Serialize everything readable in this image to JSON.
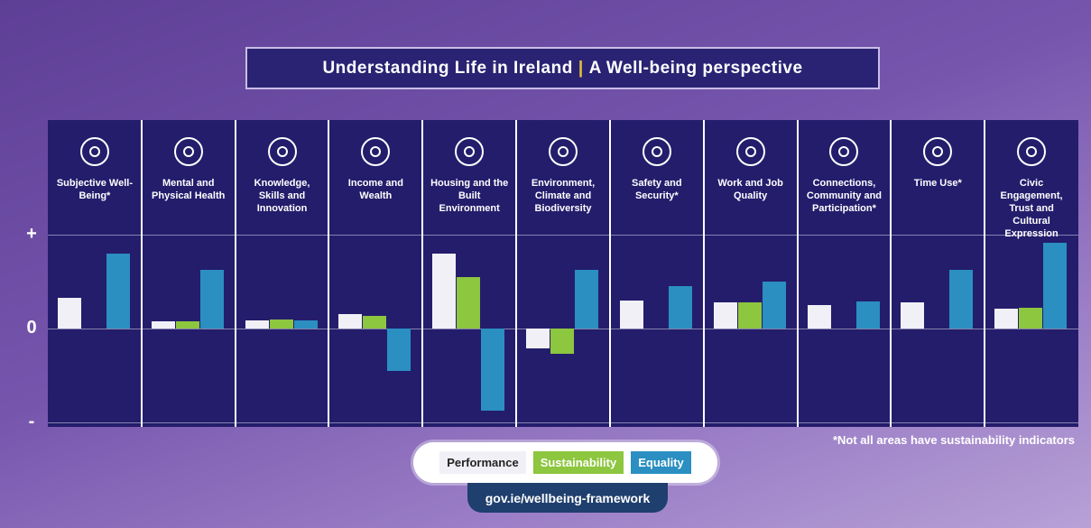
{
  "chart_data": {
    "type": "bar",
    "title_left": "Understanding Life in Ireland",
    "title_separator": "|",
    "title_right": "A Well-being perspective",
    "categories": [
      "Subjective Well-Being*",
      "Mental and Physical Health",
      "Knowledge, Skills and Innovation",
      "Income and Wealth",
      "Housing and the Built Environment",
      "Environment, Climate and Biodiversity",
      "Safety and Security*",
      "Work and Job Quality",
      "Connections, Community and Participation*",
      "Time Use*",
      "Civic Engagement, Trust and Cultural Expression"
    ],
    "series": [
      {
        "name": "Performance",
        "color": "#f1f0f6",
        "values": [
          1.3,
          0.3,
          0.35,
          0.6,
          3.2,
          -0.85,
          1.2,
          1.1,
          1.0,
          1.1,
          0.85
        ]
      },
      {
        "name": "Sustainability",
        "color": "#8dc63f",
        "values": [
          null,
          0.3,
          0.4,
          0.55,
          2.2,
          -1.1,
          null,
          1.1,
          null,
          null,
          0.9
        ]
      },
      {
        "name": "Equality",
        "color": "#2b8fc1",
        "values": [
          3.2,
          2.5,
          0.35,
          -1.8,
          -3.5,
          2.5,
          1.8,
          2.0,
          1.15,
          2.5,
          3.65
        ]
      }
    ],
    "ylim": [
      -4.2,
      4.5
    ],
    "yticks": [
      {
        "value": 4,
        "label": "+"
      },
      0,
      {
        "value": -4,
        "label": "-"
      }
    ],
    "grid": true,
    "footnote": "*Not all areas have sustainability indicators",
    "url": "gov.ie/wellbeing-framework"
  }
}
